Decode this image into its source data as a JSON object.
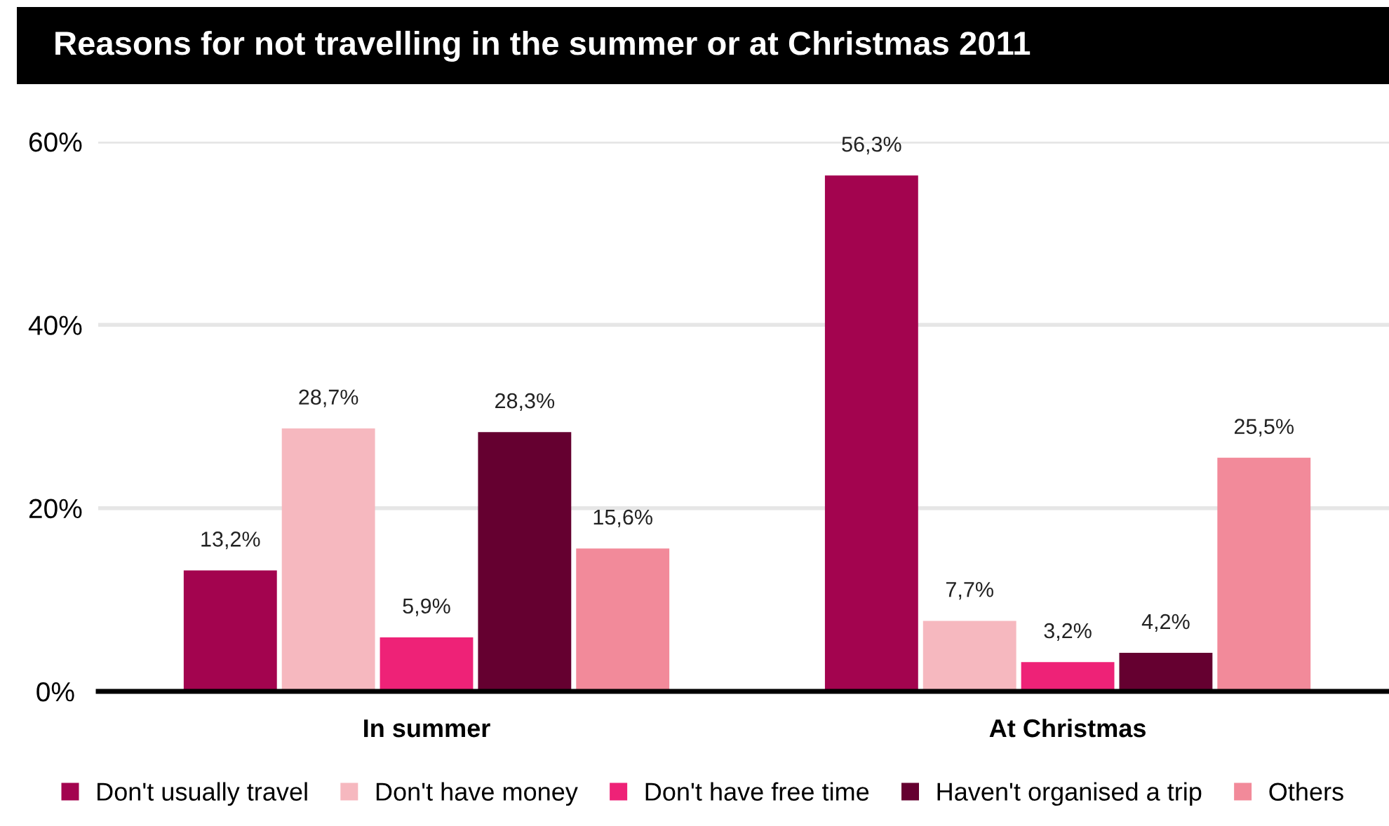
{
  "chart_data": {
    "type": "bar",
    "title": "Reasons for not travelling in the summer or at Christmas 2011",
    "categories": [
      "In summer",
      "At Christmas"
    ],
    "series": [
      {
        "name": "Don't usually travel",
        "color": "#a3044f",
        "values": [
          13.2,
          56.3
        ],
        "value_labels": [
          "13,2%",
          "56,3%"
        ]
      },
      {
        "name": "Don't have money",
        "color": "#f6b8bf",
        "values": [
          28.7,
          7.7
        ],
        "value_labels": [
          "28,7%",
          "7,7%"
        ]
      },
      {
        "name": "Don't have free time",
        "color": "#ee2277",
        "values": [
          5.9,
          3.2
        ],
        "value_labels": [
          "5,9%",
          "3,2%"
        ]
      },
      {
        "name": "Haven't organised a trip",
        "color": "#650030",
        "values": [
          28.3,
          4.2
        ],
        "value_labels": [
          "28,3%",
          "4,2%"
        ]
      },
      {
        "name": "Others",
        "color": "#f28a9a",
        "values": [
          15.6,
          25.5
        ],
        "value_labels": [
          "15,6%",
          "25,5%"
        ]
      }
    ],
    "ylim": [
      0,
      60
    ],
    "yticks": [
      {
        "value": 0,
        "label": "0%"
      },
      {
        "value": 20,
        "label": "20%"
      },
      {
        "value": 40,
        "label": "40%"
      },
      {
        "value": 60,
        "label": "60%"
      }
    ],
    "grid": "y",
    "legend": "bottom"
  }
}
